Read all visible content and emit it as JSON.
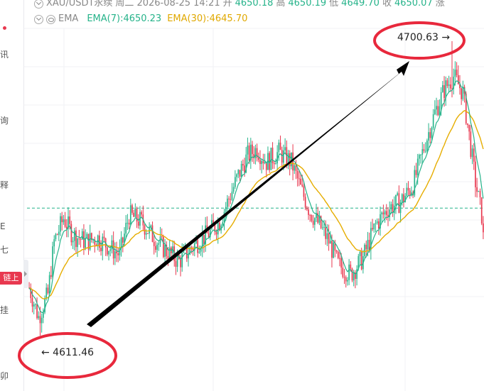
{
  "left_rail": {
    "glyphs": [
      "讯",
      "询",
      "释",
      "E",
      "七",
      "挂",
      "卯"
    ],
    "chain_badge": "链上"
  },
  "legend": {
    "symbol": "XAU/USDT永续",
    "weekday": "周二",
    "datetime": "2026-08-25 14:21",
    "open_label": "开",
    "open_value": "4650.18",
    "high_label": "高",
    "high_value": "4650.19",
    "low_label": "低",
    "low_value": "4649.70",
    "close_label": "收",
    "close_value": "4650.07",
    "change_label": "涨",
    "indicator": "EMA",
    "ema7_label": "EMA(7):4650.23",
    "ema30_label": "EMA(30):4645.70"
  },
  "annotations": {
    "low_label": "← 4611.46",
    "high_label": "4700.63 →"
  },
  "colors": {
    "up": "#26b38a",
    "down": "#e8384f",
    "ema7": "#26b38a",
    "ema30": "#e6ad00",
    "current_price_line": "#26b38a",
    "highlight_ellipse": "#e8283c",
    "arrow": "#000000"
  },
  "chart_data": {
    "type": "candlestick",
    "title": "XAU/USDT永续",
    "series": [
      {
        "name": "EMA(7)",
        "last": 4650.23
      },
      {
        "name": "EMA(30)",
        "last": 4645.7
      }
    ],
    "close_path": [
      [
        0,
        4626
      ],
      [
        6,
        4617
      ],
      [
        12,
        4624
      ],
      [
        16,
        4640
      ],
      [
        22,
        4647
      ],
      [
        28,
        4642
      ],
      [
        36,
        4640
      ],
      [
        44,
        4641
      ],
      [
        52,
        4638
      ],
      [
        58,
        4636
      ],
      [
        64,
        4648
      ],
      [
        72,
        4646
      ],
      [
        80,
        4641
      ],
      [
        88,
        4637
      ],
      [
        96,
        4634
      ],
      [
        106,
        4639
      ],
      [
        114,
        4642
      ],
      [
        122,
        4646
      ],
      [
        128,
        4653
      ],
      [
        134,
        4660
      ],
      [
        140,
        4666
      ],
      [
        146,
        4668
      ],
      [
        152,
        4664
      ],
      [
        160,
        4667
      ],
      [
        168,
        4664
      ],
      [
        174,
        4656
      ],
      [
        180,
        4649
      ],
      [
        186,
        4645
      ],
      [
        192,
        4640
      ],
      [
        198,
        4633
      ],
      [
        206,
        4630
      ],
      [
        214,
        4635
      ],
      [
        222,
        4645
      ],
      [
        230,
        4650
      ],
      [
        238,
        4652
      ],
      [
        246,
        4657
      ],
      [
        254,
        4670
      ],
      [
        260,
        4679
      ],
      [
        266,
        4686
      ],
      [
        272,
        4690
      ],
      [
        278,
        4685
      ],
      [
        282,
        4672
      ],
      [
        286,
        4658
      ],
      [
        290,
        4648
      ],
      [
        291,
        4641
      ]
    ],
    "session_low": 4611.46,
    "session_high": 4700.63,
    "current_price": 4650.07
  }
}
